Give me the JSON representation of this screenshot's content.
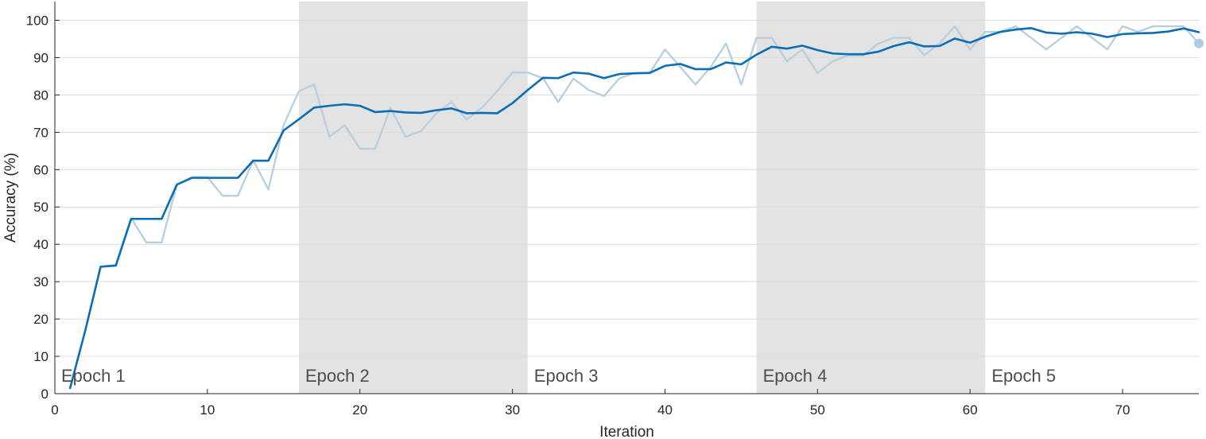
{
  "chart_data": {
    "type": "line",
    "xlabel": "Iteration",
    "ylabel": "Accuracy (%)",
    "xlim": [
      0,
      75
    ],
    "ylim": [
      0,
      105
    ],
    "x_ticks": [
      0,
      10,
      20,
      30,
      40,
      50,
      60,
      70
    ],
    "y_ticks": [
      0,
      10,
      20,
      30,
      40,
      50,
      60,
      70,
      80,
      90,
      100
    ],
    "grid": "horizontal",
    "colors": {
      "raw": "#b8cfe0",
      "smoothed": "#0a6db5",
      "final_marker": "#a9cde8",
      "epoch_band": "#e3e3e3",
      "grid": "#dcdcdc",
      "axis": "#262626",
      "epoch_text": "#4d4d4d"
    },
    "epochs": [
      {
        "label": "Epoch 1",
        "start": 0,
        "end": 16,
        "shaded": false
      },
      {
        "label": "Epoch 2",
        "start": 16,
        "end": 31,
        "shaded": true
      },
      {
        "label": "Epoch 3",
        "start": 31,
        "end": 46,
        "shaded": false
      },
      {
        "label": "Epoch 4",
        "start": 46,
        "end": 61,
        "shaded": true
      },
      {
        "label": "Epoch 5",
        "start": 61,
        "end": 75,
        "shaded": false
      }
    ],
    "x": [
      1,
      2,
      3,
      4,
      5,
      6,
      7,
      8,
      9,
      10,
      11,
      12,
      13,
      14,
      15,
      16,
      17,
      18,
      19,
      20,
      21,
      22,
      23,
      24,
      25,
      26,
      27,
      28,
      29,
      30,
      31,
      32,
      33,
      34,
      35,
      36,
      37,
      38,
      39,
      40,
      41,
      42,
      43,
      44,
      45,
      46,
      47,
      48,
      49,
      50,
      51,
      52,
      53,
      54,
      55,
      56,
      57,
      58,
      59,
      60,
      61,
      62,
      63,
      64,
      65,
      66,
      67,
      68,
      69,
      70,
      71,
      72,
      73,
      74,
      75
    ],
    "series": [
      {
        "values": [
          1.5,
          17,
          34,
          34.5,
          47,
          40.5,
          40.5,
          56,
          58,
          58,
          53,
          53,
          62.5,
          54.7,
          72,
          81,
          82.8,
          68.8,
          71.9,
          65.6,
          65.6,
          76.5,
          68.8,
          70.3,
          75,
          78.1,
          73.4,
          76.6,
          81,
          86,
          86,
          84.5,
          78.1,
          84.4,
          81.3,
          79.7,
          84.4,
          85.9,
          85.9,
          92.2,
          87.5,
          82.8,
          87.5,
          93.8,
          82.8,
          95.3,
          95.3,
          89,
          92.2,
          85.9,
          89,
          90.6,
          90.6,
          93.8,
          95.3,
          95.3,
          90.6,
          93.8,
          98.4,
          92.2,
          96.9,
          96.9,
          98.4,
          95.3,
          92.2,
          95.3,
          98.4,
          95.3,
          92.2,
          98.4,
          96.9,
          98.4,
          98.4,
          98.4,
          93.8
        ]
      },
      {
        "values": [
          1.5,
          17,
          34,
          34.3,
          46.8,
          46.8,
          46.8,
          56,
          57.8,
          57.8,
          57.8,
          57.8,
          62.4,
          62.4,
          70.5,
          73.5,
          76.6,
          77.1,
          77.5,
          77.1,
          75.4,
          75.7,
          75.3,
          75.2,
          75.9,
          76.4,
          75.1,
          75.2,
          75.1,
          77.8,
          81.3,
          84.6,
          84.5,
          86,
          85.7,
          84.5,
          85.6,
          85.8,
          85.9,
          87.8,
          88.3,
          86.9,
          86.9,
          88.7,
          88.2,
          90.8,
          92.9,
          92.4,
          93.2,
          92,
          91.1,
          90.9,
          90.9,
          91.6,
          93.1,
          94.1,
          93,
          93.1,
          95.1,
          94,
          95.6,
          96.9,
          97.5,
          97.9,
          96.7,
          96.4,
          96.8,
          96.4,
          95.5,
          96.3,
          96.5,
          96.6,
          97,
          97.8,
          96.8
        ]
      }
    ]
  }
}
